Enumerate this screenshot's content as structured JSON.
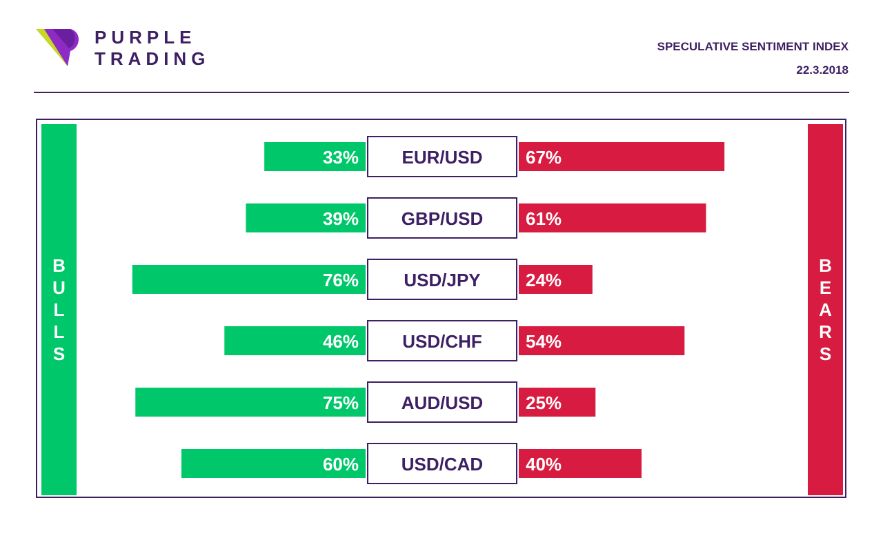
{
  "brand": {
    "line1": "PURPLE",
    "line2": "TRADING"
  },
  "header": {
    "title": "SPECULATIVE SENTIMENT INDEX",
    "date": "22.3.2018"
  },
  "colors": {
    "brand_purple": "#3d1f63",
    "bulls_green": "#00c86a",
    "bears_red": "#d81b40",
    "logo_lime": "#c5d826",
    "logo_violet": "#8e2bc4"
  },
  "icons": {
    "logo": "purple-trading-logo-icon"
  },
  "labels": {
    "bulls": "BULLS",
    "bears": "BEARS"
  },
  "chart_data": {
    "type": "bar",
    "title": "SPECULATIVE SENTIMENT INDEX",
    "categories": [
      "EUR/USD",
      "GBP/USD",
      "USD/JPY",
      "USD/CHF",
      "AUD/USD",
      "USD/CAD"
    ],
    "series": [
      {
        "name": "BULLS",
        "values": [
          33,
          39,
          76,
          46,
          75,
          60
        ],
        "color": "#00c86a"
      },
      {
        "name": "BEARS",
        "values": [
          67,
          61,
          24,
          54,
          25,
          40
        ],
        "color": "#d81b40"
      }
    ],
    "value_labels": {
      "bulls": [
        "33%",
        "39%",
        "76%",
        "46%",
        "75%",
        "60%"
      ],
      "bears": [
        "67%",
        "61%",
        "24%",
        "54%",
        "25%",
        "40%"
      ]
    },
    "grid": false,
    "legend": "left and right"
  }
}
